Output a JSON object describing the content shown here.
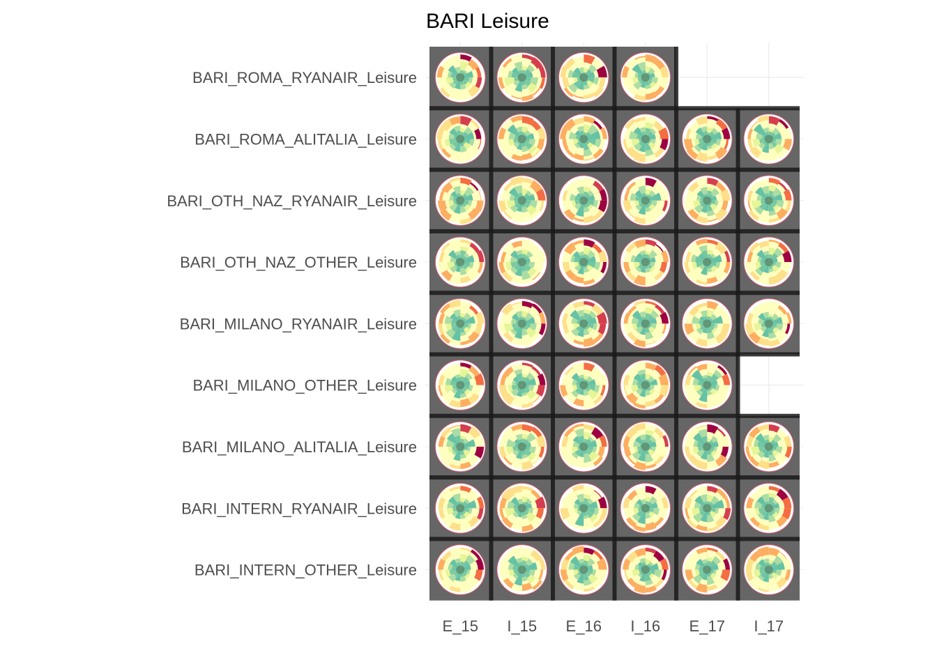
{
  "chart_data": {
    "type": "heatmap",
    "title": "BARI Leisure",
    "subtitle": "",
    "xlabel": "",
    "ylabel": "",
    "categories_x": [
      "E_15",
      "I_15",
      "E_16",
      "I_16",
      "E_17",
      "I_17"
    ],
    "categories_y": [
      "BARI_ROMA_RYANAIR_Leisure",
      "BARI_ROMA_ALITALIA_Leisure",
      "BARI_OTH_NAZ_RYANAIR_Leisure",
      "BARI_OTH_NAZ_OTHER_Leisure",
      "BARI_MILANO_RYANAIR_Leisure",
      "BARI_MILANO_OTHER_Leisure",
      "BARI_MILANO_ALITALIA_Leisure",
      "BARI_INTERN_RYANAIR_Leisure",
      "BARI_INTERN_OTHER_Leisure"
    ],
    "available": [
      [
        1,
        1,
        1,
        1,
        0,
        0
      ],
      [
        1,
        1,
        1,
        1,
        1,
        1
      ],
      [
        1,
        1,
        1,
        1,
        1,
        1
      ],
      [
        1,
        1,
        1,
        1,
        1,
        1
      ],
      [
        1,
        1,
        1,
        1,
        1,
        1
      ],
      [
        1,
        1,
        1,
        1,
        1,
        0
      ],
      [
        1,
        1,
        1,
        1,
        1,
        1
      ],
      [
        1,
        1,
        1,
        1,
        1,
        1
      ],
      [
        1,
        1,
        1,
        1,
        1,
        1
      ]
    ],
    "cell_content": "polar-chart-thumbnail",
    "tile_color": "#666666",
    "separator_color": "#1a1a1a",
    "palette": [
      "#9e0142",
      "#d53e4f",
      "#f46d43",
      "#fdae61",
      "#fee08b",
      "#ffffbf",
      "#e6f598",
      "#abdda4",
      "#66c2a5",
      "#3288bd"
    ],
    "grid": true,
    "legend": "none"
  }
}
